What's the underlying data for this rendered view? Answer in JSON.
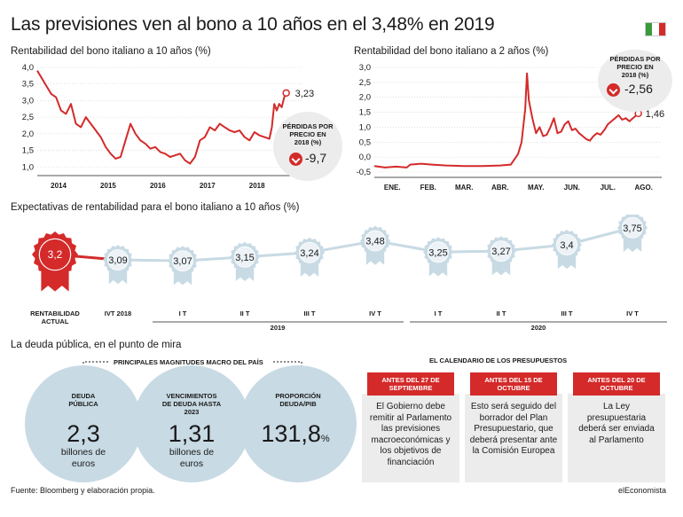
{
  "title": "Las previsiones ven al bono a 10 años en el 3,48% en 2019",
  "flag_colors": [
    "#3a9a3a",
    "#ffffff",
    "#d42a2a"
  ],
  "colors": {
    "accent": "#d42a2a",
    "medal": "#c8dae4",
    "grid": "#cccccc"
  },
  "chart_data": [
    {
      "type": "line",
      "title": "Rentabilidad del bono italiano a 10 años (%)",
      "y_ticks": [
        "4,0",
        "3,5",
        "3,0",
        "2,5",
        "2,0",
        "1,5",
        "1,0"
      ],
      "ylim": [
        0.9,
        4.0
      ],
      "x_ticks": [
        "2014",
        "2015",
        "2016",
        "2017",
        "2018"
      ],
      "series": [
        {
          "x": [
            2013.62,
            2013.7,
            2013.8,
            2013.9,
            2014.0,
            2014.1,
            2014.2,
            2014.3,
            2014.4,
            2014.5,
            2014.6,
            2014.7,
            2014.8,
            2014.9,
            2015.0,
            2015.1,
            2015.2,
            2015.3,
            2015.4,
            2015.5,
            2015.6,
            2015.7,
            2015.8,
            2015.9,
            2016.0,
            2016.1,
            2016.2,
            2016.3,
            2016.4,
            2016.5,
            2016.6,
            2016.7,
            2016.8,
            2016.9,
            2017.0,
            2017.1,
            2017.2,
            2017.3,
            2017.4,
            2017.5,
            2017.6,
            2017.7,
            2017.8,
            2017.9,
            2018.0,
            2018.1,
            2018.2,
            2018.3,
            2018.35,
            2018.4,
            2018.45,
            2018.5,
            2018.55,
            2018.6,
            2018.64
          ],
          "values": [
            3.9,
            3.7,
            3.45,
            3.2,
            3.1,
            2.7,
            2.6,
            2.9,
            2.3,
            2.2,
            2.5,
            2.3,
            2.1,
            1.9,
            1.6,
            1.4,
            1.25,
            1.3,
            1.8,
            2.3,
            2.0,
            1.8,
            1.7,
            1.55,
            1.6,
            1.45,
            1.4,
            1.3,
            1.35,
            1.4,
            1.2,
            1.1,
            1.3,
            1.8,
            1.9,
            2.2,
            2.1,
            2.3,
            2.2,
            2.1,
            2.05,
            2.1,
            1.9,
            1.8,
            2.05,
            1.95,
            1.9,
            1.85,
            2.2,
            2.9,
            2.7,
            2.9,
            2.8,
            3.1,
            3.23
          ]
        }
      ],
      "end_label": "3,23"
    },
    {
      "type": "line",
      "title": "Rentabilidad del bono italiano a 2 años (%)",
      "y_ticks": [
        "3,0",
        "2,5",
        "2,0",
        "1,5",
        "1,0",
        "0,5",
        "0,0",
        "-0,5"
      ],
      "ylim": [
        -0.5,
        3.0
      ],
      "x_ticks": [
        "ENE.",
        "FEB.",
        "MAR.",
        "ABR.",
        "MAY.",
        "JUN.",
        "JUL.",
        "AGO."
      ],
      "series": [
        {
          "x": [
            0,
            0.3,
            0.6,
            0.9,
            1.0,
            1.3,
            1.6,
            2.0,
            2.5,
            3.0,
            3.5,
            3.8,
            4.0,
            4.1,
            4.2,
            4.25,
            4.3,
            4.4,
            4.5,
            4.6,
            4.7,
            4.8,
            4.9,
            5.0,
            5.1,
            5.2,
            5.3,
            5.4,
            5.5,
            5.6,
            5.7,
            5.8,
            5.9,
            6.0,
            6.1,
            6.2,
            6.3,
            6.4,
            6.5,
            6.6,
            6.7,
            6.8,
            6.9,
            7.0,
            7.1,
            7.2,
            7.35
          ],
          "values": [
            -0.3,
            -0.35,
            -0.32,
            -0.35,
            -0.25,
            -0.22,
            -0.25,
            -0.28,
            -0.3,
            -0.3,
            -0.28,
            -0.25,
            0.1,
            0.5,
            1.6,
            2.8,
            1.9,
            1.3,
            0.8,
            1.0,
            0.7,
            0.75,
            1.0,
            1.3,
            0.8,
            0.85,
            1.1,
            1.2,
            0.9,
            0.95,
            0.8,
            0.7,
            0.6,
            0.55,
            0.7,
            0.8,
            0.75,
            0.9,
            1.1,
            1.2,
            1.3,
            1.4,
            1.25,
            1.3,
            1.2,
            1.3,
            1.46
          ]
        }
      ],
      "end_label": "1,46"
    },
    {
      "type": "line",
      "title": "Expectativas de rentabilidad para el bono italiano a 10 años (%)",
      "categories": [
        "RENTABILIDAD ACTUAL",
        "IVT 2018",
        "I T",
        "II T",
        "III T",
        "IV T",
        "I T",
        "II T",
        "III T",
        "IV T"
      ],
      "values": [
        3.2,
        3.09,
        3.07,
        3.15,
        3.24,
        3.48,
        3.25,
        3.27,
        3.4,
        3.75
      ],
      "labels": [
        "3,2",
        "3,09",
        "3,07",
        "3,15",
        "3,24",
        "3,48",
        "3,25",
        "3,27",
        "3,4",
        "3,75"
      ],
      "groups": [
        "2019",
        "2020"
      ]
    }
  ],
  "loss10": {
    "label": "PÉRDIDAS POR PRECIO EN 2018 (%)",
    "value": "-9,7"
  },
  "loss2": {
    "label": "PÉRDIDAS POR PRECIO EN 2018 (%)",
    "value": "-2,56"
  },
  "debt": {
    "title": "La deuda pública, en el punto de mira",
    "subtitle": "PRINCIPALES MAGNITUDES MACRO DEL PAÍS",
    "stats": [
      {
        "label": "DEUDA PÚBLICA",
        "value": "2,3",
        "unit": "billones de euros"
      },
      {
        "label": "VENCIMIENTOS DE DEUDA HASTA 2023",
        "value": "1,31",
        "unit": "billones de euros"
      },
      {
        "label": "PROPORCIÓN DEUDA/PIB",
        "value": "131,8",
        "unit": "%"
      }
    ]
  },
  "calendar": {
    "title": "EL CALENDARIO DE LOS PRESUPUESTOS",
    "items": [
      {
        "tag": "ANTES DEL 27 DE SEPTIEMBRE",
        "text": "El Gobierno debe remitir al Parlamento las previsiones macroeconómicas y los objetivos de financiación"
      },
      {
        "tag": "ANTES DEL 15 DE OCTUBRE",
        "text": "Esto será seguido del borrador del Plan Presupuestario, que deberá presentar ante la Comisión Europea"
      },
      {
        "tag": "ANTES DEL 20 DE OCTUBRE",
        "text": "La Ley presupuestaria deberá ser enviada al Parlamento"
      }
    ]
  },
  "footer": {
    "source": "Fuente: Bloomberg y elaboración propia.",
    "brand": "elEconomista"
  }
}
